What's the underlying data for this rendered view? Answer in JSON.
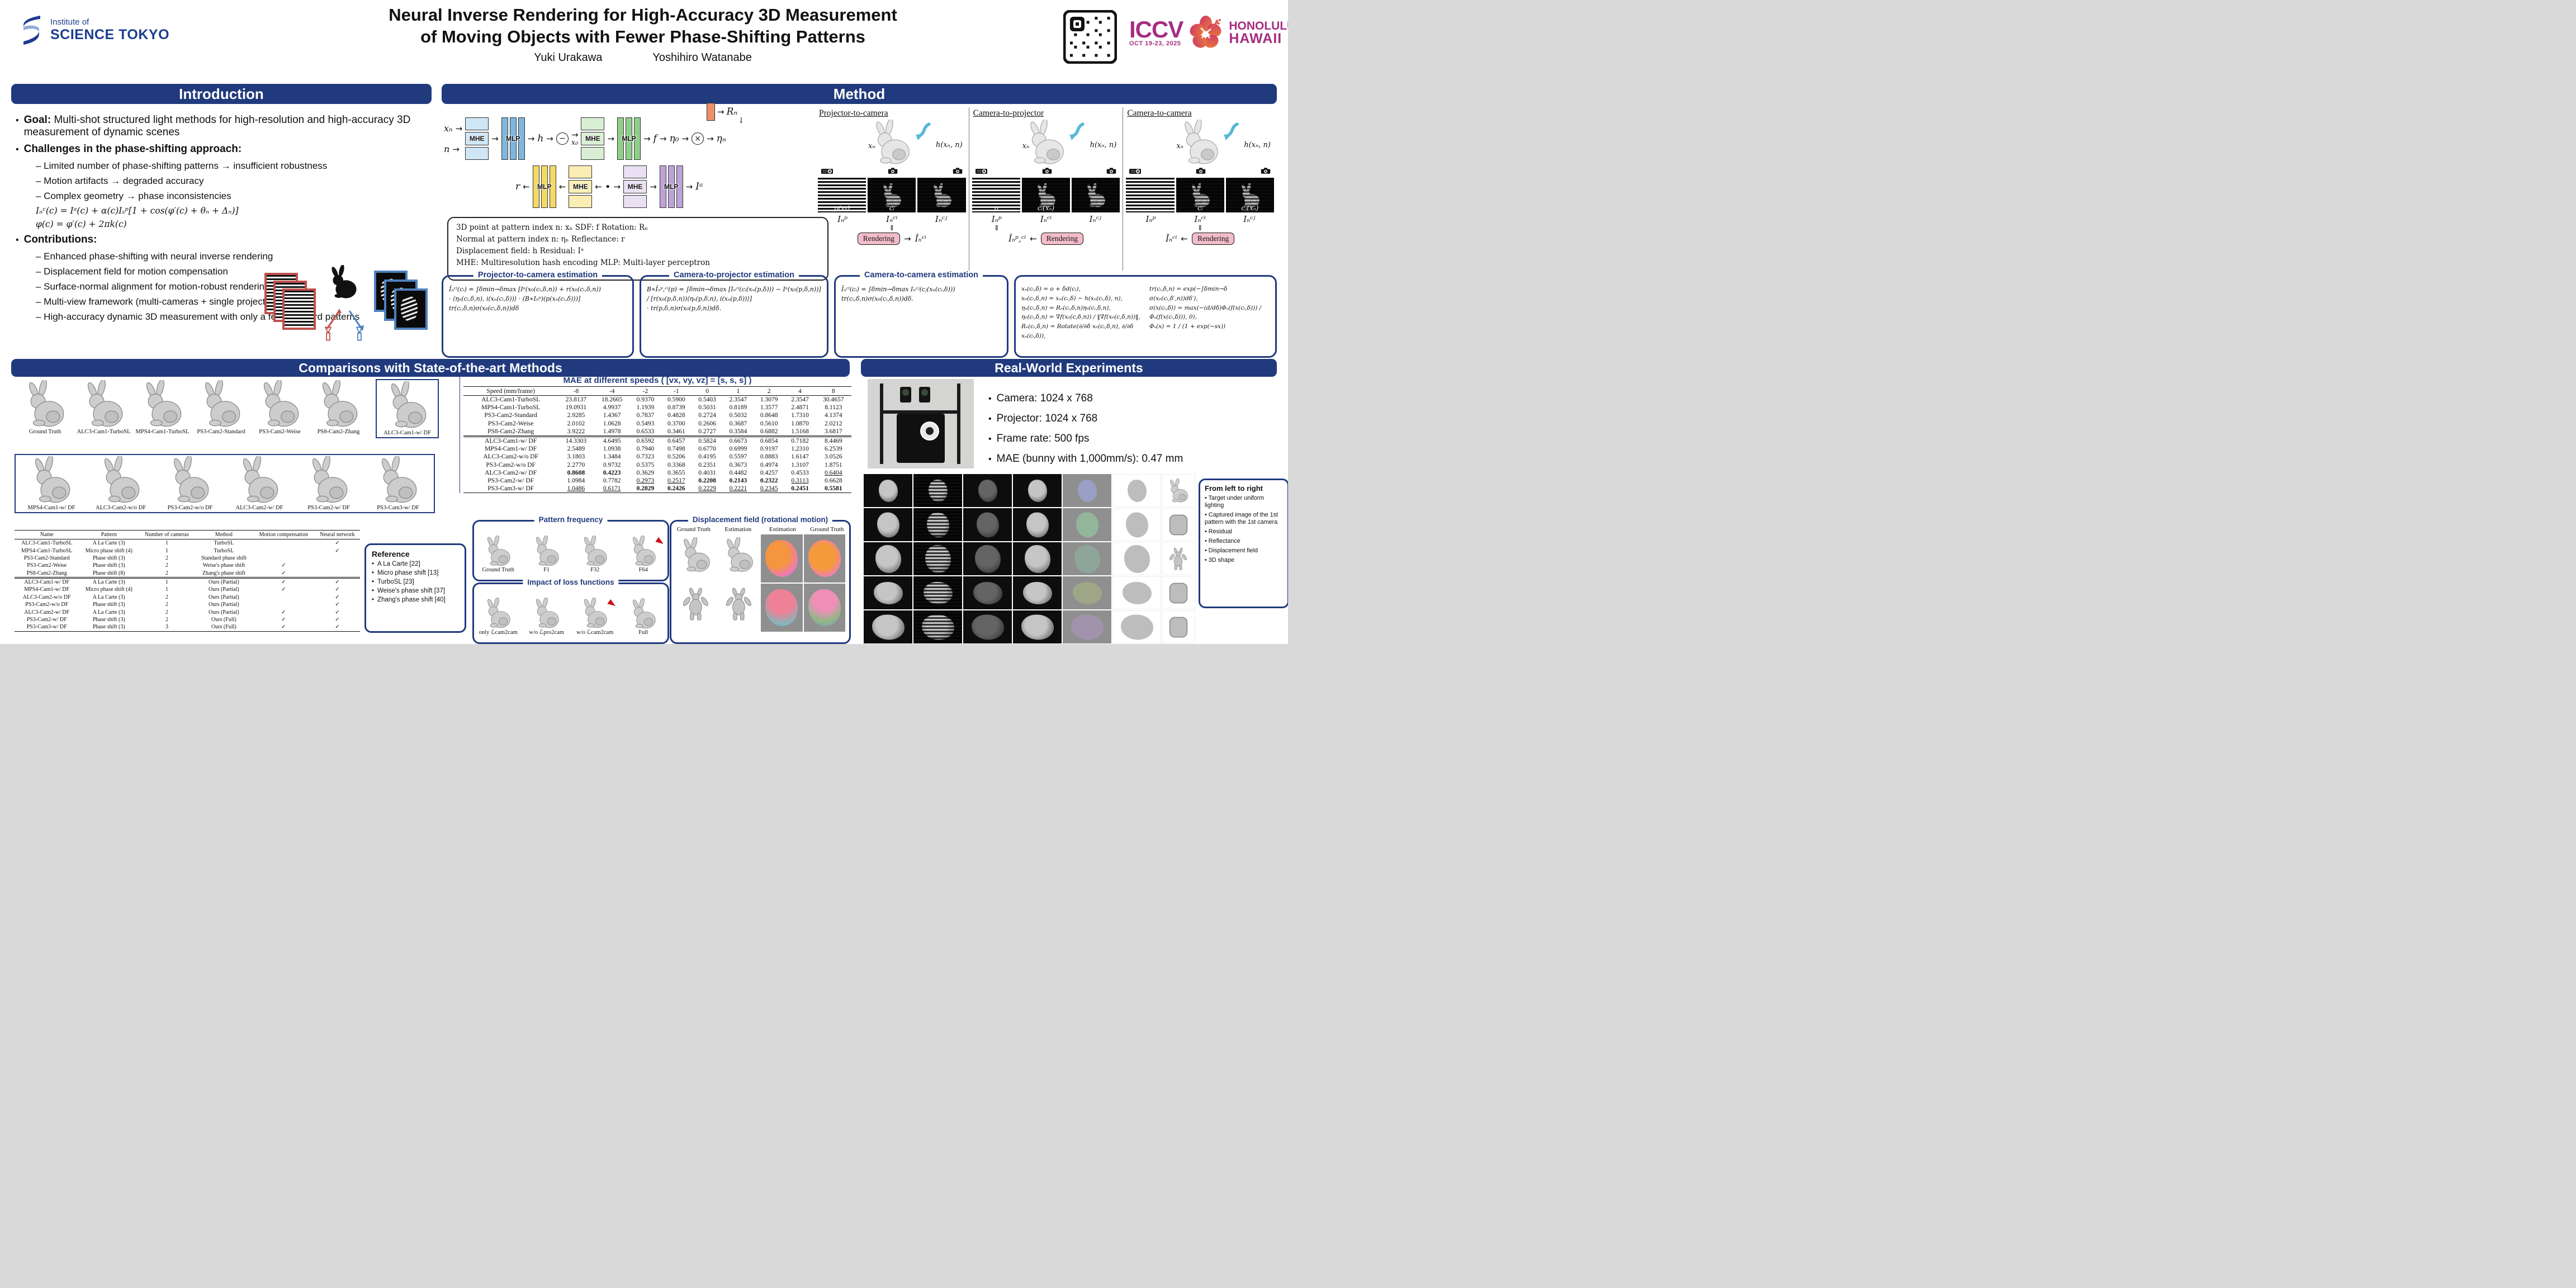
{
  "colors": {
    "navy": "#203a7d",
    "magenta": "#a62d80",
    "flower_orange": "#ef7f35",
    "flower_red": "#c9356f",
    "render_pink": "#f3bccb",
    "mhe_blue": "#cfe6f5",
    "mlp_blue": "#7fb6dd",
    "mhe_green": "#d9efd4",
    "mlp_green": "#8fcf8a",
    "mhe_yellow": "#faeeb5",
    "mlp_yellow": "#f3d965",
    "mhe_purple": "#e9e0f3",
    "mlp_purple": "#bda3d8",
    "rotation_orange": "#ec8f6a",
    "institute_navy": "#1c3d8f"
  },
  "poster": {
    "institute": {
      "line1": "Institute of",
      "line2": "SCIENCE TOKYO"
    },
    "title_line1": "Neural Inverse Rendering for High-Accuracy 3D Measurement",
    "title_line2": "of Moving Objects with Fewer Phase-Shifting Patterns",
    "authors": [
      "Yuki Urakawa",
      "Yoshihiro Watanabe"
    ],
    "conference": {
      "name": "ICCV",
      "dates": "OCT 19-23, 2025",
      "location1": "HONOLULU",
      "location2": "HAWAII"
    }
  },
  "intro": {
    "heading": "Introduction",
    "goal_label": "Goal:",
    "goal_text": "Multi-shot structured light methods for high-resolution and high-accuracy 3D measurement of dynamic scenes",
    "challenges_label": "Challenges in the phase-shifting approach:",
    "challenges": [
      "Limited number of phase-shifting patterns → insufficient robustness",
      "Motion artifacts → degraded accuracy",
      "Complex geometry → phase inconsistencies"
    ],
    "equations": [
      "Iₙᶜ(c) = Iᵃ(c) + α(c)Iₛᵖ[1 + cos(φ′(c) + θₙ + Δₙ)]",
      "φ(c) = φ′(c) + 2πk(c)"
    ],
    "contributions_label": "Contributions:",
    "contributions": [
      "Enhanced phase-shifting with neural inverse rendering",
      "Displacement field for motion compensation",
      "Surface-normal alignment for motion-robust rendering",
      "Multi-view framework (multi-cameras + single projector)",
      "High-accuracy dynamic 3D measurement with only a few standard patterns"
    ]
  },
  "method": {
    "heading": "Method",
    "diagram": {
      "in_top": "xₙ",
      "in_bottom": "n",
      "enc1": "MHE",
      "mlp1": "MLP",
      "h": "h",
      "minus": "−",
      "x0": "x₀",
      "enc2": "MHE",
      "mlp2": "MLP",
      "f": "f",
      "eta0": "η₀",
      "times": "×",
      "etan": "ηₙ",
      "rn": "Rₙ",
      "r": "r",
      "mlp3": "MLP",
      "enc3": "MHE",
      "enc4": "MHE",
      "mlp4": "MLP",
      "ia": "Iᵃ"
    },
    "legend": [
      "3D point at pattern index n: xₙ      SDF: f      Rotation: Rₙ",
      "Normal at pattern index n: ηₙ      Reflectance: r",
      "Displacement field: h      Residual: Iᵃ",
      "MHE: Multiresolution hash encoding    MLP: Multi-layer perceptron"
    ],
    "panels": [
      {
        "title": "Projector-to-camera",
        "x_label": "xₙ",
        "h_label": "h(xₙ, n)",
        "img_labels": [
          "p(xₙ)",
          "cᵢ",
          ""
        ],
        "sub_labels": [
          "Iₙᵖ",
          "Iₙᶜⁱ",
          "Iₙᶜʲ"
        ],
        "cmp_col": 1,
        "flow": [
          {
            "t": "box",
            "v": "Rendering"
          },
          {
            "t": "arr",
            "v": "→"
          },
          {
            "t": "out",
            "v": "Îₙᶜⁱ"
          }
        ]
      },
      {
        "title": "Camera-to-projector",
        "x_label": "xₙ",
        "h_label": "h(xₙ, n)",
        "img_labels": [
          "p",
          "cᵢ(xₙ)",
          ""
        ],
        "sub_labels": [
          "Iₙᵖ",
          "Iₙᶜⁱ",
          "Iₙᶜʲ"
        ],
        "cmp_col": 0,
        "flow": [
          {
            "t": "out",
            "v": "Îₙᵖ,ᶜⁱ"
          },
          {
            "t": "arr",
            "v": "←"
          },
          {
            "t": "box",
            "v": "Rendering"
          }
        ]
      },
      {
        "title": "Camera-to-camera",
        "x_label": "xₙ",
        "h_label": "h(xₙ, n)",
        "img_labels": [
          "",
          "cᵢ",
          "cⱼ(xₙ)"
        ],
        "sub_labels": [
          "Iₙᵖ",
          "Iₙᶜⁱ",
          "Iₙᶜʲ"
        ],
        "cmp_col": 1,
        "flow": [
          {
            "t": "out",
            "v": "Ĩₙᶜⁱ"
          },
          {
            "t": "arr",
            "v": "←"
          },
          {
            "t": "box",
            "v": "Rendering"
          }
        ]
      }
    ],
    "estimations": [
      {
        "title": "Projector-to-camera estimation",
        "lines": [
          "Îₙᶜⁱ(cᵢ) = ∫δmin→δmax [Iᵃ(x₀(cᵢ,δ,n)) + r(x₀(cᵢ,δ,n))",
          "· ⟨ηₙ(cᵢ,δ,n), i(xₙ(cᵢ,δ))⟩ · (B∗Iₙᵖ)(p(xₙ(cᵢ,δ)))]",
          "tr(cᵢ,δ,n)σ(x₀(cᵢ,δ,n))dδ"
        ]
      },
      {
        "title": "Camera-to-projector estimation",
        "lines": [
          "B∗Îₙᵖ,ᶜⁱ(p) = ∫δmin→δmax [Iₙᶜⁱ(cᵢ(xₙ(p,δ))) − Iᵃ(x₀(p,δ,n))]",
          "/ [r(x₀(p,δ,n))⟨ηₙ(p,δ,n), i(xₙ(p,δ))⟩]",
          "· tr(p,δ,n)σ(x₀(p,δ,n))dδ."
        ]
      },
      {
        "title": "Camera-to-camera estimation",
        "lines": [
          "Ĩₙᶜⁱ(cᵢ) = ∫δmin→δmax Iₙᶜʲ(cⱼ(xₙ(cᵢ,δ)))",
          "tr(cᵢ,δ,n)σ(x₀(cᵢ,δ,n))dδ."
        ]
      }
    ],
    "aux_equations": [
      "xₙ(cᵢ,δ) = o + δd(cᵢ),",
      "x₀(cᵢ,δ,n) = xₙ(cᵢ,δ) − h(xₙ(cᵢ,δ), n),",
      "ηₙ(cᵢ,δ,n) = Rₙ(cᵢ,δ,n)η₀(cᵢ,δ,n),",
      "η₀(cᵢ,δ,n) = ∇f(x₀(c,δ,n)) / ‖∇f(x₀(c,δ,n))‖,",
      "Rₙ(cᵢ,δ,n) = Rotate(∂/∂δ x₀(cᵢ,δ,n), ∂/∂δ xₙ(cᵢ,δ)),",
      "tr(cᵢ,δ,n) = exp(−∫δmin→δ σ(x₀(cᵢ,δ′,n))dδ′),",
      "σ(x(cᵢ,δ)) = max(−(d/dδ)Φₛ(f(x(cᵢ,δ))) / Φₛ(f(x(cᵢ,δ))), 0),",
      "Φₛ(x) = 1 / (1 + exp(−sx))"
    ]
  },
  "comparisons": {
    "heading": "Comparisons with State-of-the-art Methods",
    "row1_labels": [
      "Ground Truth",
      "ALC3-Cam1-TurboSL",
      "MPS4-Cam1-TurboSL",
      "PS3-Cam2-Standard",
      "PS3-Cam2-Weise",
      "PS8-Cam2-Zhang"
    ],
    "row1_boxed_label": "ALC3-Cam1-w/ DF",
    "row2_labels": [
      "MPS4-Cam1-w/ DF",
      "ALC3-Cam2-w/o DF",
      "PS3-Cam2-w/o DF",
      "ALC3-Cam2-w/ DF",
      "PS3-Cam2-w/ DF",
      "PS3-Cam3-w/ DF"
    ],
    "methods_table": {
      "headers": [
        "Name",
        "Pattern",
        "Number of cameras",
        "Method",
        "Motion compensation",
        "Neural network"
      ],
      "rows": [
        [
          "ALC3-Cam1-TurboSL",
          "A La Carte (3)",
          "1",
          "TurboSL",
          "",
          "✓"
        ],
        [
          "MPS4-Cam1-TurboSL",
          "Micro phase shift (4)",
          "1",
          "TurboSL",
          "",
          "✓"
        ],
        [
          "PS3-Cam2-Standard",
          "Phase shift (3)",
          "2",
          "Standard phase shift",
          "",
          ""
        ],
        [
          "PS3-Cam2-Weise",
          "Phase shift (3)",
          "2",
          "Weise's phase shift",
          "✓",
          ""
        ],
        [
          "PS8-Cam2-Zhang",
          "Phase shift (8)",
          "2",
          "Zhang's phase shift",
          "✓",
          ""
        ],
        [
          "ALC3-Cam1-w/ DF",
          "A La Carte (3)",
          "1",
          "Ours (Partial)",
          "✓",
          "✓"
        ],
        [
          "MPS4-Cam1-w/ DF",
          "Micro phase shift (4)",
          "1",
          "Ours (Partial)",
          "✓",
          "✓"
        ],
        [
          "ALC3-Cam2-w/o DF",
          "A La Carte (3)",
          "2",
          "Ours (Partial)",
          "",
          "✓"
        ],
        [
          "PS3-Cam2-w/o DF",
          "Phase shift (3)",
          "2",
          "Ours (Partial)",
          "",
          "✓"
        ],
        [
          "ALC3-Cam2-w/ DF",
          "A La Carte (3)",
          "2",
          "Ours (Partial)",
          "✓",
          "✓"
        ],
        [
          "PS3-Cam2-w/ DF",
          "Phase shift (3)",
          "2",
          "Ours (Full)",
          "✓",
          "✓"
        ],
        [
          "PS3-Cam3-w/ DF",
          "Phase shift (3)",
          "3",
          "Ours (Full)",
          "✓",
          "✓"
        ]
      ],
      "group_split_index": 5
    },
    "reference": {
      "title": "Reference",
      "items": [
        "A La Carte [22]",
        "Micro phase shift [13]",
        "TurboSL [23]",
        "Weise's phase shift [37]",
        "Zhang's phase shift [40]"
      ]
    },
    "mae_table": {
      "title": "MAE at different speeds ( [vx, vy, vz] = [s, s, s] )",
      "col_headers": [
        "Speed (mm/frame)",
        "-8",
        "-4",
        "-2",
        "-1",
        "0",
        "1",
        "2",
        "4",
        "8"
      ],
      "group1": [
        [
          "ALC3-Cam1-TurboSL",
          "23.8137",
          "18.2665",
          "0.9370",
          "0.5900",
          "0.5403",
          "2.3547",
          "1.3079",
          "2.3547",
          "30.4657"
        ],
        [
          "MPS4-Cam1-TurboSL",
          "19.0931",
          "4.9937",
          "1.1939",
          "0.8739",
          "0.5031",
          "0.8189",
          "1.3577",
          "2.4871",
          "8.1123"
        ],
        [
          "PS3-Cam2-Standard",
          "2.9285",
          "1.4367",
          "0.7837",
          "0.4828",
          "0.2724",
          "0.5032",
          "0.8648",
          "1.7310",
          "4.1374"
        ],
        [
          "PS3-Cam2-Weise",
          "2.0102",
          "1.0628",
          "0.5493",
          "0.3700",
          "0.2606",
          "0.3687",
          "0.5610",
          "1.0870",
          "2.0212"
        ],
        [
          "PS8-Cam2-Zhang",
          "3.9222",
          "1.4978",
          "0.6533",
          "0.3461",
          "0.2727",
          "0.3584",
          "0.6882",
          "1.5168",
          "3.6817"
        ]
      ],
      "group2": [
        [
          "ALC3-Cam1-w/ DF",
          "14.3303",
          "4.6495",
          "0.6592",
          "0.6457",
          "0.5824",
          "0.6673",
          "0.6854",
          "0.7182",
          "8.4469"
        ],
        [
          "MPS4-Cam1-w/ DF",
          "2.5489",
          "1.0938",
          "0.7940",
          "0.7498",
          "0.6770",
          "0.6999",
          "0.9197",
          "1.2310",
          "6.2539"
        ],
        [
          "ALC3-Cam2-w/o DF",
          "3.1803",
          "1.3484",
          "0.7323",
          "0.5206",
          "0.4195",
          "0.5597",
          "0.8883",
          "1.6147",
          "3.0526"
        ],
        [
          "PS3-Cam2-w/o DF",
          "2.2770",
          "0.9732",
          "0.5375",
          "0.3368",
          "0.2351",
          "0.3673",
          "0.4974",
          "1.3107",
          "1.8751"
        ],
        [
          "ALC3-Cam2-w/ DF",
          "**0.8608**",
          "**0.4223**",
          "0.3629",
          "0.3655",
          "0.4031",
          "0.4482",
          "0.4257",
          "0.4533",
          "__0.6404__"
        ],
        [
          "PS3-Cam2-w/ DF",
          "1.0984",
          "0.7782",
          "__0.2973__",
          "__0.2517__",
          "**0.2208**",
          "**0.2143**",
          "**0.2322**",
          "__0.3113__",
          "0.6628"
        ],
        [
          "PS3-Cam3-w/ DF",
          "__1.0486__",
          "__0.6171__",
          "**0.2829**",
          "**0.2426**",
          "__0.2229__",
          "__0.2221__",
          "__0.2345__",
          "**0.2451**",
          "**0.5581**"
        ]
      ]
    },
    "pattern_frequency": {
      "title": "Pattern frequency",
      "labels": [
        "Ground Truth",
        "F1",
        "F32",
        "F64"
      ],
      "arrow_index": 3
    },
    "loss_functions": {
      "title": "Impact of loss functions",
      "labels": [
        "only ℒcam2cam",
        "w/o ℒpro2cam",
        "w/o ℒcam2cam",
        "Full"
      ],
      "arrow_index": 2
    },
    "displacement": {
      "title": "Displacement field (rotational motion)",
      "labels": [
        "Ground Truth",
        "Estimation",
        "Estimation",
        "Ground Truth"
      ]
    }
  },
  "realworld": {
    "heading": "Real-World Experiments",
    "bullets": [
      "Camera: 1024 x 768",
      "Projector: 1024 x 768",
      "Frame rate: 500 fps",
      "MAE (bunny with 1,000mm/s): 0.47 mm"
    ],
    "fromleft": {
      "title": "From left to right",
      "items": [
        "Target under uniform lighting",
        "Captured image of the 1st pattern with the 1st camera",
        "Residual",
        "Reflectance",
        "Displacement field",
        "3D shape"
      ]
    }
  }
}
